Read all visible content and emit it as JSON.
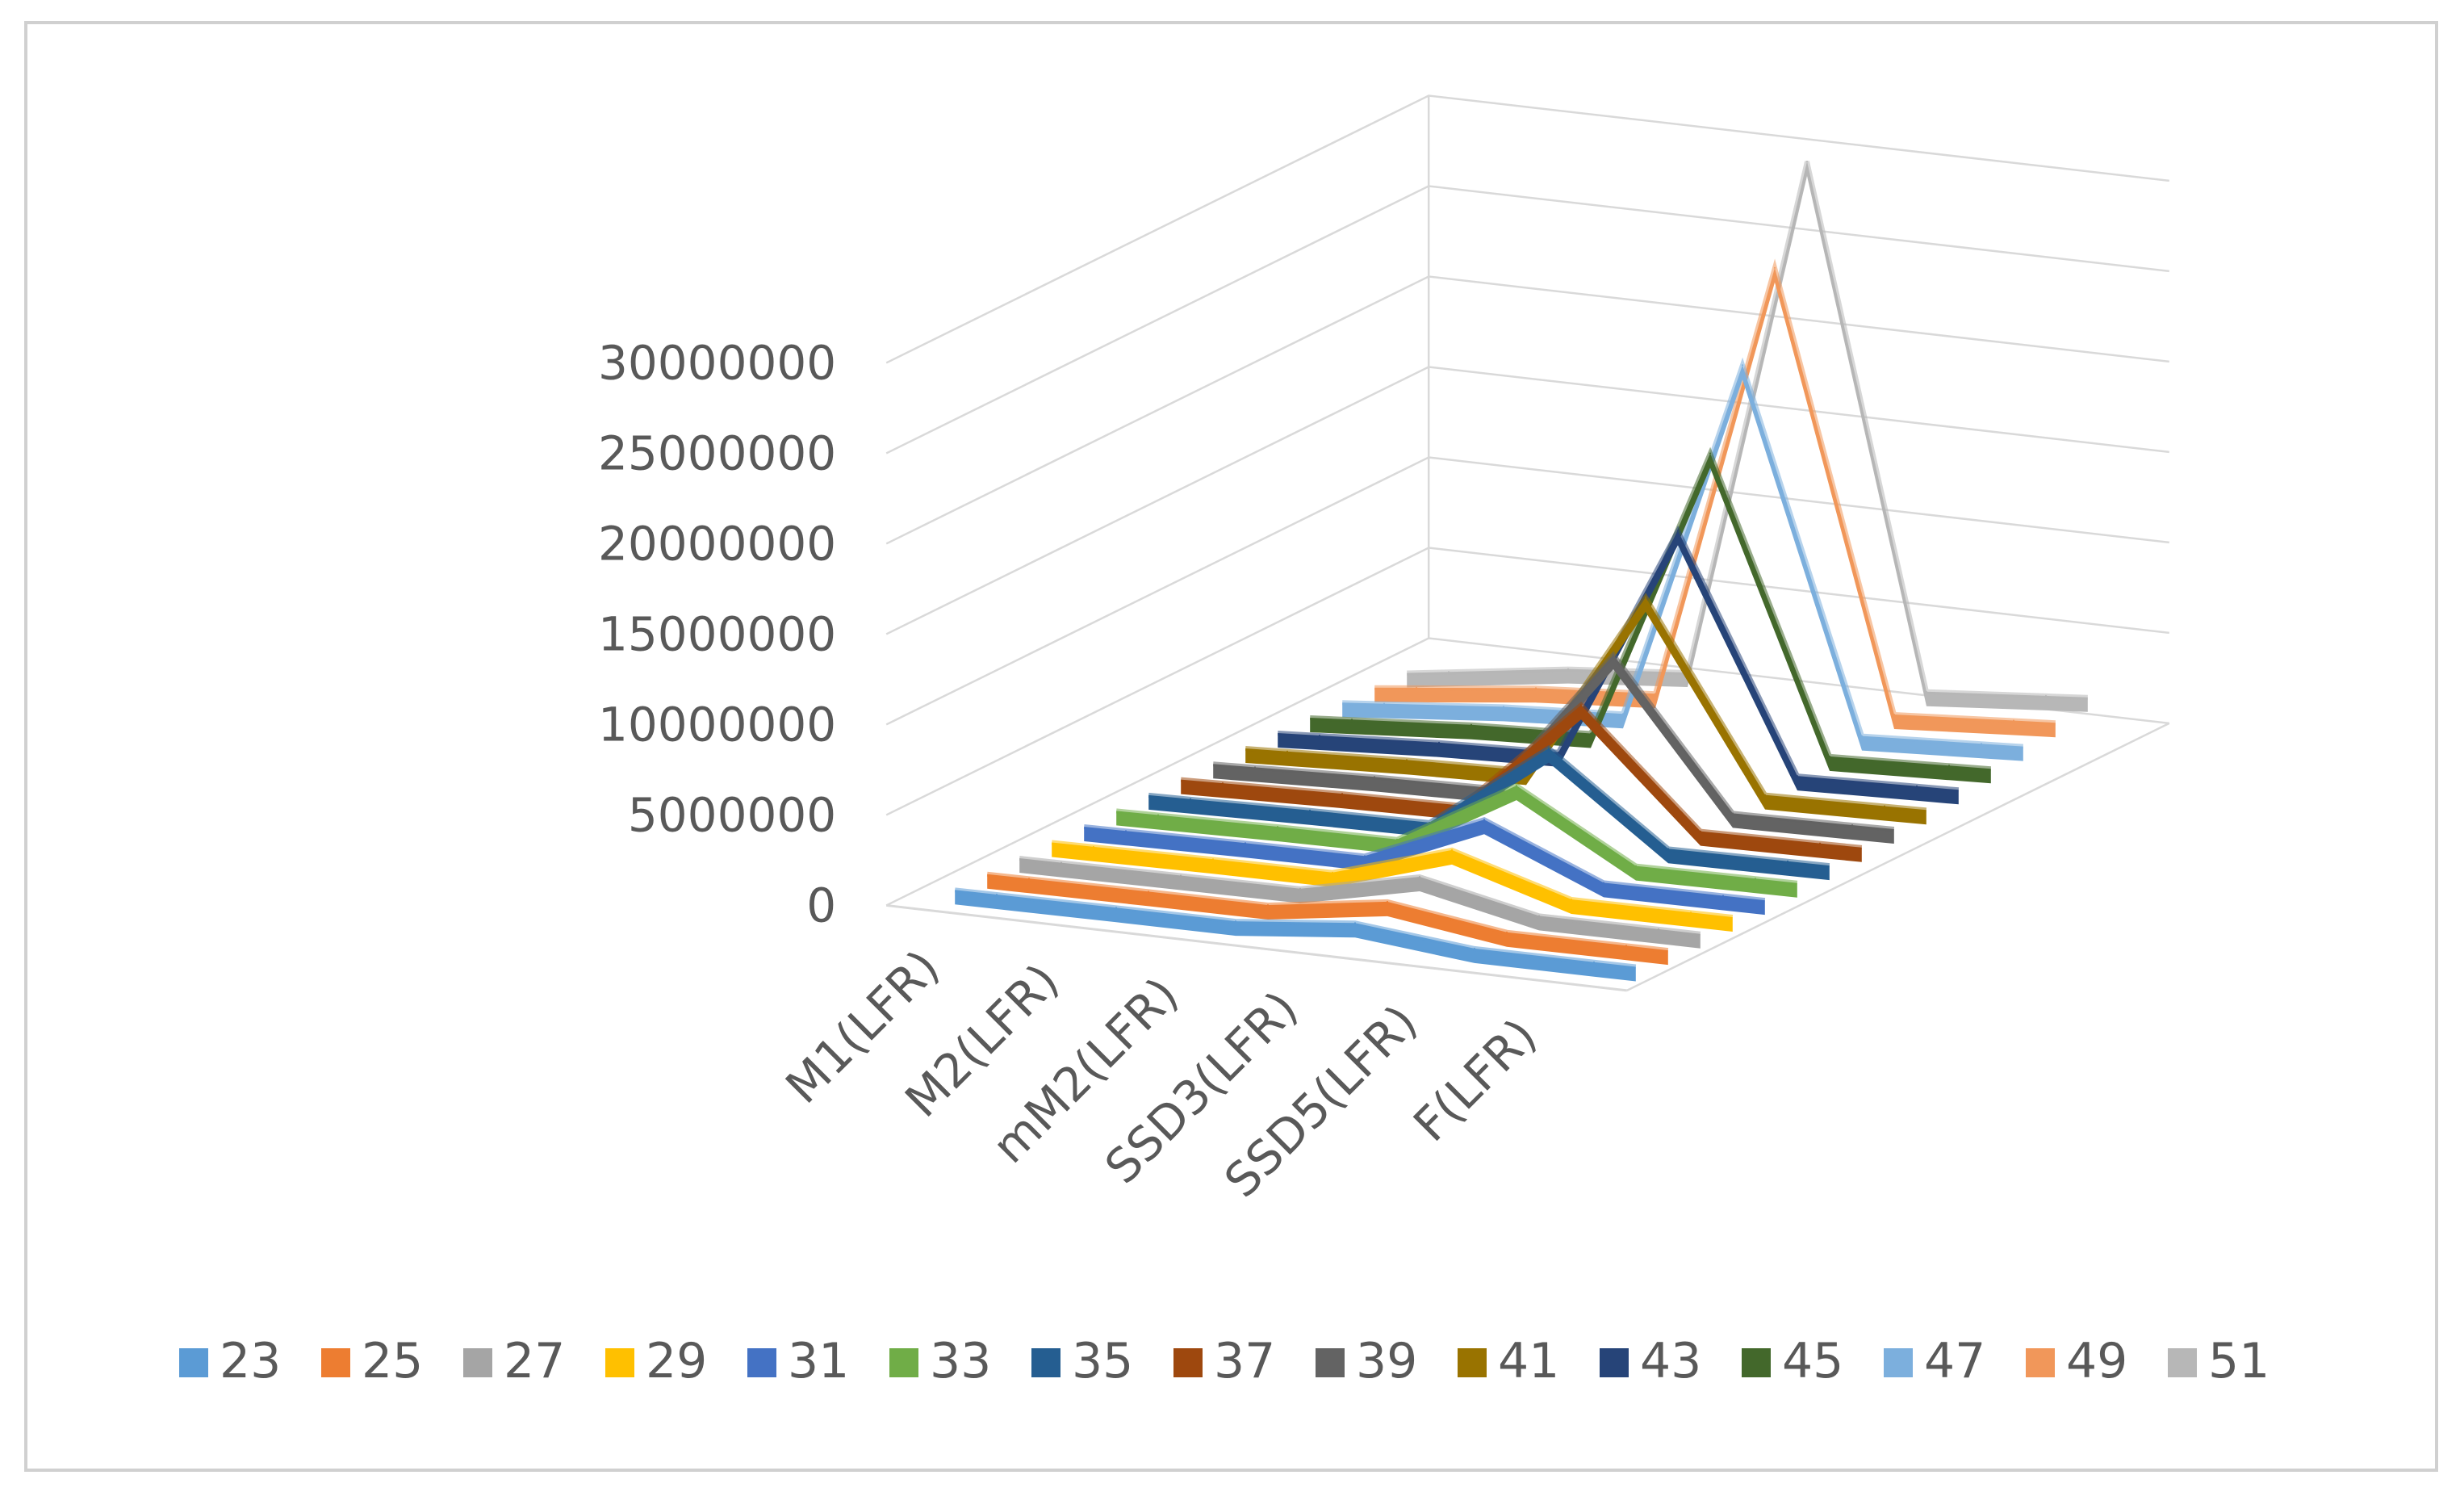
{
  "chart_data": {
    "type": "line",
    "subtype": "3d-line",
    "title": "",
    "xlabel": "",
    "ylabel": "",
    "ylim": [
      0,
      30000000
    ],
    "yticks": [
      "0",
      "5000000",
      "10000000",
      "15000000",
      "20000000",
      "25000000",
      "30000000"
    ],
    "ytick_values": [
      0,
      5000000,
      10000000,
      15000000,
      20000000,
      25000000,
      30000000
    ],
    "categories": [
      "M1(LFR)",
      "M2(LFR)",
      "mM2(LFR)",
      "SSD3(LFR)",
      "SSD5(LFR)",
      "F(LFR)"
    ],
    "series": [
      {
        "name": "23",
        "color": "#5B9BD5",
        "values": [
          0,
          30000,
          40000,
          700000,
          50000,
          60000
        ]
      },
      {
        "name": "25",
        "color": "#ED7D31",
        "values": [
          0,
          40000,
          60000,
          1000000,
          70000,
          90000
        ]
      },
      {
        "name": "27",
        "color": "#A5A5A5",
        "values": [
          0,
          50000,
          80000,
          1500000,
          100000,
          120000
        ]
      },
      {
        "name": "29",
        "color": "#FFC000",
        "values": [
          0,
          70000,
          100000,
          2100000,
          130000,
          160000
        ]
      },
      {
        "name": "31",
        "color": "#4472C4",
        "values": [
          0,
          90000,
          130000,
          2900000,
          170000,
          210000
        ]
      },
      {
        "name": "33",
        "color": "#70AD47",
        "values": [
          0,
          110000,
          170000,
          3900000,
          220000,
          280000
        ]
      },
      {
        "name": "35",
        "color": "#255E91",
        "values": [
          0,
          140000,
          220000,
          5100000,
          290000,
          360000
        ]
      },
      {
        "name": "37",
        "color": "#9E480E",
        "values": [
          0,
          180000,
          280000,
          6600000,
          380000,
          470000
        ]
      },
      {
        "name": "39",
        "color": "#636363",
        "values": [
          0,
          230000,
          360000,
          8500000,
          490000,
          600000
        ]
      },
      {
        "name": "41",
        "color": "#997300",
        "values": [
          0,
          290000,
          460000,
          10800000,
          630000,
          770000
        ]
      },
      {
        "name": "43",
        "color": "#264478",
        "values": [
          0,
          370000,
          590000,
          13600000,
          800000,
          990000
        ]
      },
      {
        "name": "45",
        "color": "#43682B",
        "values": [
          0,
          470000,
          750000,
          17000000,
          1000000,
          1250000
        ]
      },
      {
        "name": "47",
        "color": "#7CAFDD",
        "values": [
          0,
          590000,
          950000,
          21000000,
          1250000,
          1580000
        ]
      },
      {
        "name": "49",
        "color": "#F1975A",
        "values": [
          0,
          740000,
          1190000,
          25500000,
          1560000,
          1980000
        ]
      },
      {
        "name": "51",
        "color": "#B7B7B7",
        "values": [
          0,
          920000,
          1480000,
          30500000,
          1940000,
          2470000
        ]
      }
    ],
    "legend_position": "bottom",
    "grid": true
  },
  "axis_line_color": "#d9d9d9"
}
